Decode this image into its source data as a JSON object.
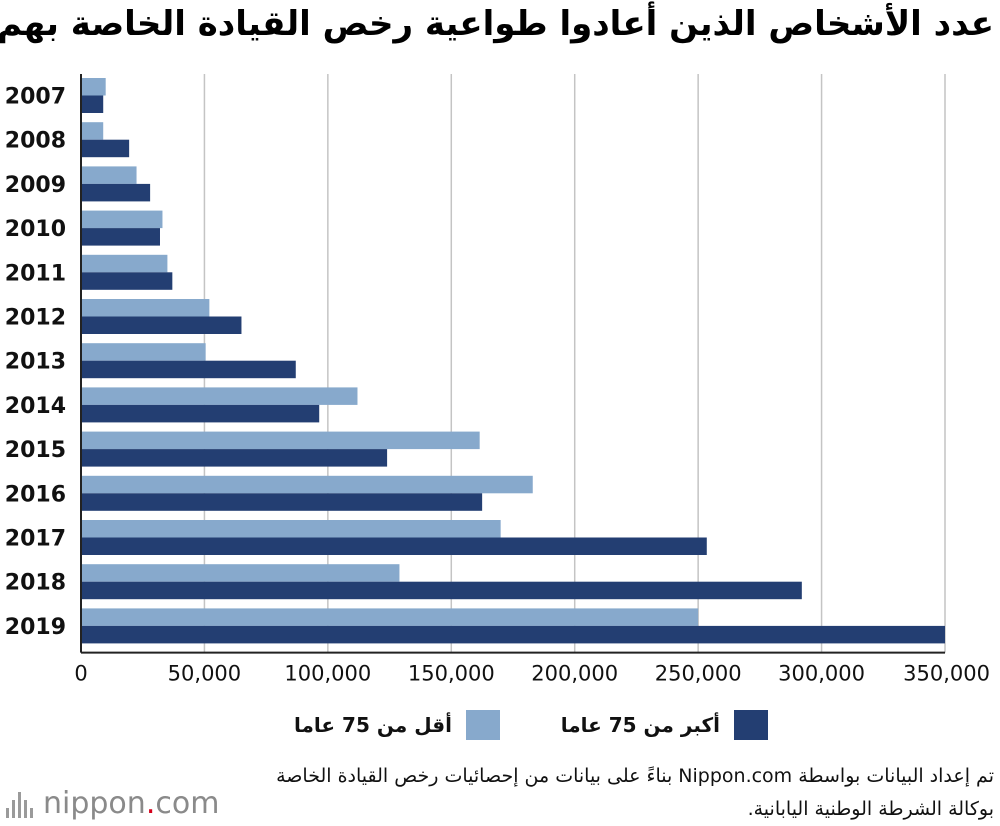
{
  "title": "عدد الأشخاص الذين أعادوا طواعية رخص القيادة الخاصة بهم",
  "legend": {
    "over75": "أكبر من 75 عاما",
    "under75": "أقل من 75 عاما"
  },
  "source": "تم إعداد البيانات بواسطة Nippon.com بناءً على بيانات من إحصائيات رخص القيادة الخاصة بوكالة الشرطة الوطنية اليابانية.",
  "brand": {
    "name": "nippon",
    "dot": ".",
    "tld": "com"
  },
  "colors": {
    "under75": "#87a9cc",
    "over75": "#233e72",
    "grid": "#c4c4c4",
    "axis": "#222222"
  },
  "chart_data": {
    "type": "bar",
    "orientation": "horizontal",
    "categories": [
      "2007",
      "2008",
      "2009",
      "2010",
      "2011",
      "2012",
      "2013",
      "2014",
      "2015",
      "2016",
      "2017",
      "2018",
      "2019"
    ],
    "series": [
      {
        "name": "أقل من 75 عاما",
        "values": [
          10000,
          9000,
          22500,
          33000,
          35000,
          52000,
          50500,
          112000,
          161500,
          183000,
          170000,
          129000,
          250000
        ]
      },
      {
        "name": "أكبر من 75 عاما",
        "values": [
          9000,
          19500,
          28000,
          32000,
          37000,
          65000,
          87000,
          96500,
          124000,
          162500,
          253500,
          292000,
          350000
        ]
      }
    ],
    "xticks": [
      0,
      50000,
      100000,
      150000,
      200000,
      250000,
      300000,
      350000
    ],
    "xtick_labels": [
      "0",
      "50,000",
      "100,000",
      "150,000",
      "200,000",
      "250,000",
      "300,000",
      "350,000"
    ],
    "xlim": [
      0,
      350000
    ],
    "grid": true,
    "legend_position": "bottom"
  }
}
